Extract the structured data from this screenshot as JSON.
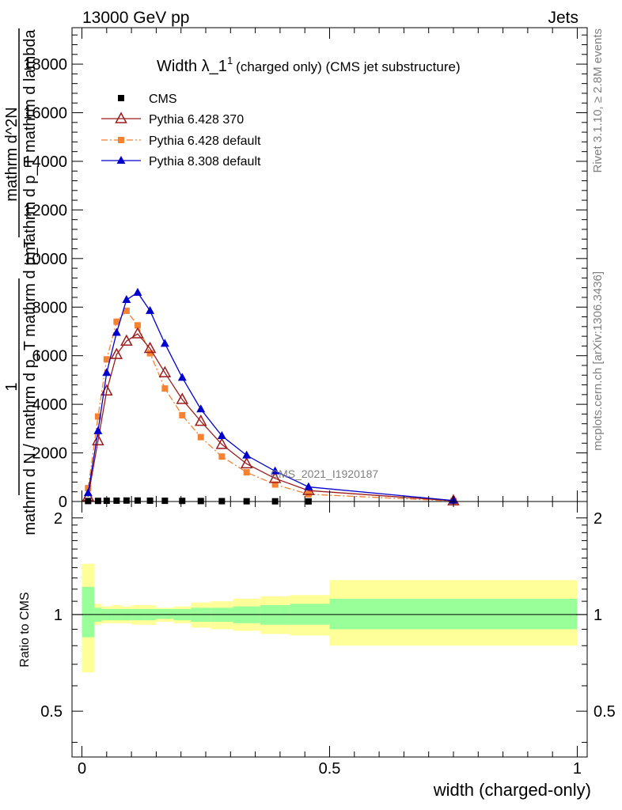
{
  "header": {
    "left": "13000 GeV pp",
    "right": "Jets"
  },
  "side_labels": {
    "rivet": "Rivet 3.1.10, ≥ 2.8M events",
    "mcplots": "mcplots.cern.ch [arXiv:1306.3436]"
  },
  "analysis_id": "CMS_2021_I1920187",
  "colors": {
    "cms": "#000000",
    "pythia6_370": "#9b1b1b",
    "pythia6_default": "#f58231",
    "pythia8_default": "#0000cc",
    "band_inner": "#99ff99",
    "band_outer": "#ffff99"
  },
  "chart_data": [
    {
      "type": "line",
      "title_main": "Width λ_1",
      "title_sup": "1",
      "title_rest": "(charged only) (CMS jet substructure)",
      "ylabel_num": "1",
      "ylabel_den": "mathrm d N / mathrm d p_T mathrm d p_T",
      "ylabel_right_top": "mathrm d^2N",
      "ylabel_right_bottom": "mathrm d p_T mathrm d lambda",
      "xlim": [
        -0.02,
        1.02
      ],
      "ylim": [
        0,
        19500
      ],
      "yticks": [
        0,
        2000,
        4000,
        6000,
        8000,
        10000,
        12000,
        14000,
        16000,
        18000
      ],
      "ytick_labels": [
        "0",
        "2000",
        "4000",
        "6000",
        "8000",
        "10000",
        "12000",
        "14000",
        "16000",
        "18000"
      ],
      "legend_position": "top-left",
      "series": [
        {
          "name": "CMS",
          "marker": "square",
          "x": [
            0.0125,
            0.0325,
            0.05,
            0.07,
            0.09,
            0.1125,
            0.1375,
            0.1675,
            0.2025,
            0.24,
            0.2825,
            0.3325,
            0.39,
            0.4575
          ],
          "y": [
            20,
            25,
            30,
            35,
            40,
            40,
            35,
            30,
            25,
            20,
            15,
            10,
            8,
            5
          ]
        },
        {
          "name": "Pythia 6.428 370",
          "marker": "open-triangle",
          "x": [
            0.0125,
            0.0325,
            0.05,
            0.07,
            0.09,
            0.1125,
            0.1375,
            0.1675,
            0.2025,
            0.24,
            0.2825,
            0.3325,
            0.39,
            0.4575,
            0.75
          ],
          "y": [
            200,
            2500,
            4550,
            6050,
            6600,
            6900,
            6300,
            5300,
            4200,
            3300,
            2350,
            1550,
            950,
            450,
            30
          ]
        },
        {
          "name": "Pythia 6.428 default",
          "marker": "square",
          "x": [
            0.0125,
            0.0325,
            0.05,
            0.07,
            0.09,
            0.1125,
            0.1375,
            0.1675,
            0.2025,
            0.24,
            0.2825,
            0.3325,
            0.39,
            0.4575,
            0.75
          ],
          "y": [
            550,
            3500,
            5850,
            7400,
            7850,
            7250,
            6100,
            4650,
            3550,
            2650,
            1850,
            1200,
            700,
            300,
            20
          ]
        },
        {
          "name": "Pythia 8.308 default",
          "marker": "triangle",
          "x": [
            0.0125,
            0.0325,
            0.05,
            0.07,
            0.09,
            0.1125,
            0.1375,
            0.1675,
            0.2025,
            0.24,
            0.2825,
            0.3325,
            0.39,
            0.4575,
            0.75
          ],
          "y": [
            350,
            2900,
            5300,
            6950,
            8300,
            8600,
            7850,
            6500,
            5100,
            3800,
            2700,
            1900,
            1250,
            600,
            40
          ]
        }
      ]
    },
    {
      "type": "area",
      "ylabel": "Ratio to CMS",
      "xlabel": "width (charged-only)",
      "xlim": [
        -0.02,
        1.02
      ],
      "ylim": [
        0.36,
        2.25
      ],
      "xticks": [
        0,
        0.5,
        1
      ],
      "xtick_labels": [
        "0",
        "0.5",
        "1"
      ],
      "yticks": [
        0.5,
        1,
        2
      ],
      "ytick_labels": [
        "0.5",
        "1",
        "2"
      ],
      "bins": {
        "lo": [
          0.0,
          0.025,
          0.04,
          0.06,
          0.08,
          0.1,
          0.125,
          0.15,
          0.185,
          0.22,
          0.26,
          0.305,
          0.36,
          0.42,
          0.5
        ],
        "hi": [
          0.025,
          0.04,
          0.06,
          0.08,
          0.1,
          0.125,
          0.15,
          0.185,
          0.22,
          0.26,
          0.305,
          0.36,
          0.42,
          0.5,
          1.0
        ],
        "inner_lo": [
          0.85,
          0.95,
          0.96,
          0.96,
          0.96,
          0.96,
          0.96,
          0.97,
          0.96,
          0.95,
          0.95,
          0.94,
          0.93,
          0.93,
          0.9
        ],
        "inner_hi": [
          1.22,
          1.05,
          1.04,
          1.04,
          1.04,
          1.04,
          1.04,
          1.04,
          1.04,
          1.05,
          1.05,
          1.06,
          1.07,
          1.08,
          1.12
        ],
        "outer_lo": [
          0.66,
          0.93,
          0.94,
          0.94,
          0.94,
          0.93,
          0.93,
          0.95,
          0.94,
          0.91,
          0.9,
          0.89,
          0.87,
          0.86,
          0.8
        ],
        "outer_hi": [
          1.44,
          1.08,
          1.06,
          1.07,
          1.06,
          1.07,
          1.07,
          1.05,
          1.06,
          1.09,
          1.1,
          1.12,
          1.14,
          1.15,
          1.28
        ]
      },
      "reference_line": 1
    }
  ]
}
